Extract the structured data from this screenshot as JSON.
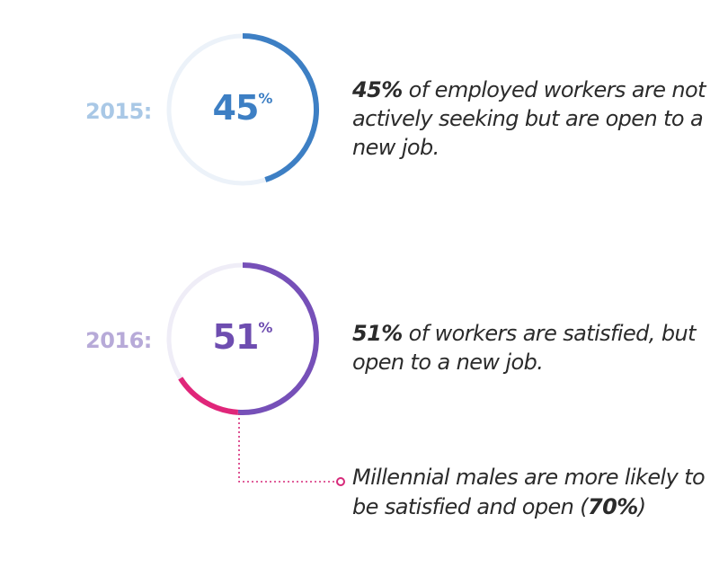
{
  "chart_data": [
    {
      "type": "pie",
      "variant": "donut",
      "year_label": "2015:",
      "value": 45,
      "value_label": "45",
      "unit": "%",
      "colors": {
        "year": "#a9c8e6",
        "value": "#3d7fc4",
        "arc": "#3d7fc4",
        "track": "#ecf2f9"
      },
      "description_bold": "45%",
      "description_rest": " of employed workers are not actively seeking but are open to a new job."
    },
    {
      "type": "pie",
      "variant": "donut",
      "year_label": "2016:",
      "value": 51,
      "value_label": "51",
      "unit": "%",
      "highlight_value": 15,
      "colors": {
        "year": "#b7aad8",
        "value": "#6e4db0",
        "arc": "#7650b8",
        "highlight": "#e0267a",
        "track": "#efedf7"
      },
      "description_bold": "51%",
      "description_rest": " of workers are satisfied, but open to a new job."
    }
  ],
  "callout": {
    "text_before": "Millennial males are more likely to be satisfied and open (",
    "text_bold": "70%",
    "text_after": ")",
    "color": "#d62a7a"
  }
}
